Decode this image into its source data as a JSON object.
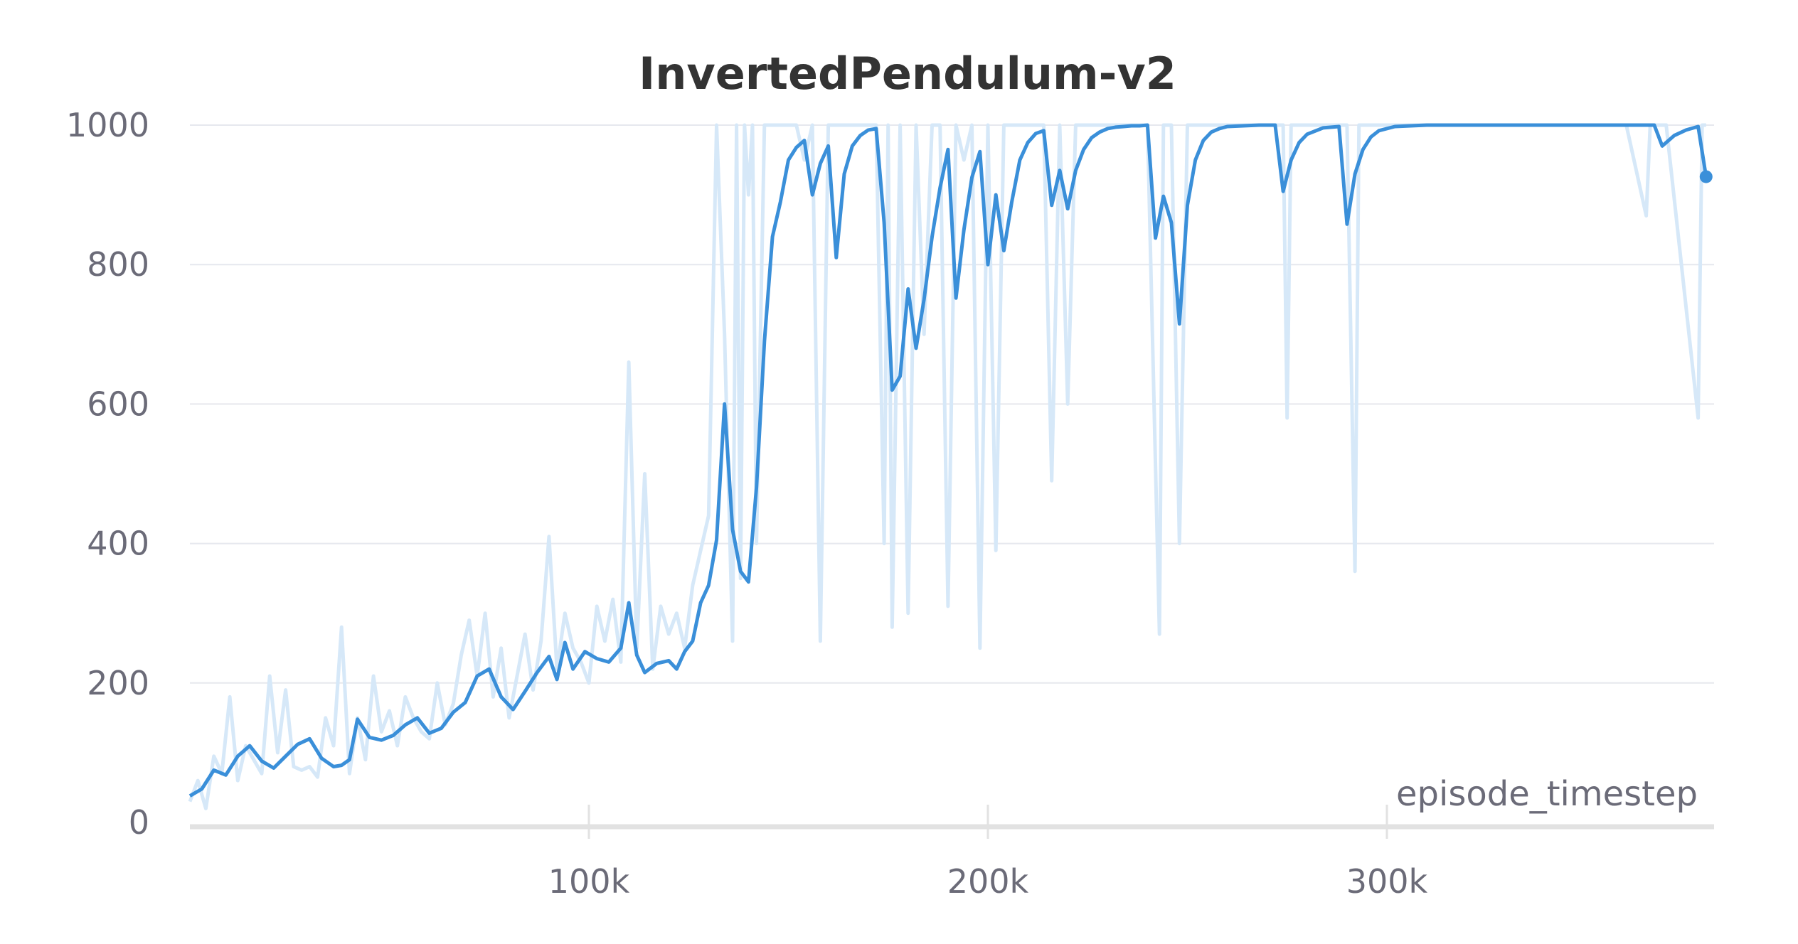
{
  "chart_data": {
    "type": "line",
    "title": "InvertedPendulum-v2",
    "xlabel": "episode_timestep",
    "ylabel": "",
    "xlim": [
      0,
      382000
    ],
    "ylim": [
      0,
      1000
    ],
    "x_ticks": [
      {
        "value": 100000,
        "label": "100k"
      },
      {
        "value": 200000,
        "label": "200k"
      },
      {
        "value": 300000,
        "label": "300k"
      }
    ],
    "y_ticks": [
      {
        "value": 0,
        "label": "0"
      },
      {
        "value": 200,
        "label": "200"
      },
      {
        "value": 400,
        "label": "400"
      },
      {
        "value": 600,
        "label": "600"
      },
      {
        "value": 800,
        "label": "800"
      },
      {
        "value": 1000,
        "label": "1000"
      }
    ],
    "grid": true,
    "legend": "none",
    "colors": {
      "line": "#3a8fd9",
      "raw": "#d6e8f8"
    },
    "series": [
      {
        "role": "smoothed",
        "x": [
          0,
          3000,
          6000,
          9000,
          12000,
          15000,
          18000,
          21000,
          24000,
          27000,
          30000,
          33000,
          36000,
          38000,
          40000,
          42000,
          45000,
          48000,
          51000,
          54000,
          57000,
          60000,
          63000,
          66000,
          69000,
          72000,
          75000,
          78000,
          81000,
          84000,
          87000,
          90000,
          92000,
          94000,
          96000,
          99000,
          102000,
          105000,
          108000,
          110000,
          112000,
          114000,
          117000,
          120000,
          122000,
          124000,
          126000,
          128000,
          130000,
          132000,
          134000,
          136000,
          138000,
          140000,
          142000,
          144000,
          146000,
          148000,
          150000,
          152000,
          154000,
          156000,
          158000,
          160000,
          162000,
          164000,
          166000,
          168000,
          170000,
          172000,
          174000,
          176000,
          178000,
          180000,
          182000,
          184000,
          186000,
          188000,
          190000,
          192000,
          194000,
          196000,
          198000,
          200000,
          202000,
          204000,
          206000,
          208000,
          210000,
          212000,
          214000,
          216000,
          218000,
          220000,
          222000,
          224000,
          226000,
          228000,
          230000,
          232000,
          234000,
          236000,
          238000,
          240000,
          242000,
          244000,
          246000,
          248000,
          250000,
          252000,
          254000,
          256000,
          258000,
          260000,
          264000,
          268000,
          272000,
          274000,
          276000,
          278000,
          280000,
          284000,
          288000,
          290000,
          292000,
          294000,
          296000,
          298000,
          302000,
          306000,
          310000,
          320000,
          330000,
          340000,
          350000,
          360000,
          365000,
          367000,
          369000,
          372000,
          375000,
          378000,
          380000
        ],
        "y": [
          38,
          48,
          75,
          68,
          95,
          110,
          88,
          78,
          95,
          112,
          120,
          92,
          80,
          82,
          90,
          148,
          122,
          118,
          125,
          140,
          150,
          128,
          135,
          158,
          172,
          210,
          220,
          180,
          162,
          188,
          215,
          238,
          205,
          258,
          220,
          245,
          235,
          230,
          250,
          315,
          240,
          215,
          228,
          232,
          220,
          245,
          260,
          315,
          340,
          405,
          600,
          420,
          360,
          345,
          480,
          690,
          840,
          890,
          950,
          968,
          978,
          900,
          945,
          970,
          810,
          930,
          970,
          985,
          993,
          995,
          860,
          620,
          640,
          765,
          680,
          750,
          840,
          910,
          965,
          752,
          850,
          925,
          962,
          800,
          900,
          820,
          890,
          950,
          975,
          988,
          992,
          885,
          935,
          880,
          935,
          965,
          982,
          990,
          995,
          997,
          998,
          999,
          999,
          1000,
          838,
          898,
          860,
          715,
          885,
          950,
          978,
          990,
          995,
          998,
          999,
          1000,
          1000,
          905,
          950,
          975,
          987,
          996,
          998,
          858,
          930,
          965,
          983,
          992,
          998,
          999,
          1000,
          1000,
          1000,
          1000,
          1000,
          1000,
          1000,
          1000,
          970,
          985,
          993,
          998,
          926
        ]
      },
      {
        "role": "raw",
        "x": [
          0,
          2000,
          4000,
          6000,
          8000,
          10000,
          12000,
          14000,
          16000,
          18000,
          20000,
          22000,
          24000,
          26000,
          28000,
          30000,
          32000,
          34000,
          36000,
          38000,
          40000,
          42000,
          44000,
          46000,
          48000,
          50000,
          52000,
          54000,
          56000,
          58000,
          60000,
          62000,
          64000,
          66000,
          68000,
          70000,
          72000,
          74000,
          76000,
          78000,
          80000,
          82000,
          84000,
          86000,
          88000,
          90000,
          92000,
          94000,
          96000,
          98000,
          100000,
          102000,
          104000,
          106000,
          108000,
          110000,
          112000,
          114000,
          116000,
          118000,
          120000,
          122000,
          124000,
          126000,
          128000,
          130000,
          132000,
          134000,
          136000,
          137000,
          138000,
          139000,
          140000,
          141000,
          142000,
          144000,
          146000,
          148000,
          150000,
          152000,
          154000,
          156000,
          158000,
          160000,
          162000,
          164000,
          166000,
          168000,
          170000,
          172000,
          174000,
          175000,
          176000,
          178000,
          180000,
          182000,
          184000,
          186000,
          188000,
          190000,
          192000,
          194000,
          196000,
          198000,
          200000,
          202000,
          204000,
          206000,
          208000,
          210000,
          212000,
          214000,
          216000,
          218000,
          220000,
          222000,
          224000,
          226000,
          228000,
          230000,
          240000,
          243000,
          244000,
          246000,
          248000,
          250000,
          252000,
          260000,
          270000,
          274000,
          275000,
          276000,
          280000,
          290000,
          292000,
          293000,
          294000,
          300000,
          310000,
          320000,
          340000,
          360000,
          365000,
          366000,
          367000,
          370000,
          378000,
          379000,
          380000
        ],
        "y": [
          30,
          60,
          20,
          95,
          70,
          180,
          60,
          110,
          90,
          70,
          210,
          100,
          190,
          80,
          75,
          80,
          65,
          150,
          110,
          280,
          70,
          150,
          90,
          210,
          130,
          160,
          110,
          180,
          150,
          130,
          120,
          200,
          140,
          170,
          240,
          290,
          210,
          300,
          180,
          250,
          150,
          210,
          270,
          190,
          260,
          410,
          220,
          300,
          250,
          230,
          200,
          310,
          260,
          320,
          230,
          660,
          250,
          500,
          220,
          310,
          270,
          300,
          250,
          340,
          390,
          440,
          1000,
          700,
          260,
          1000,
          350,
          1000,
          900,
          1000,
          400,
          1000,
          1000,
          1000,
          1000,
          1000,
          950,
          1000,
          260,
          1000,
          1000,
          1000,
          1000,
          1000,
          1000,
          1000,
          400,
          1000,
          280,
          1000,
          300,
          1000,
          700,
          1000,
          1000,
          310,
          1000,
          950,
          1000,
          250,
          1000,
          390,
          1000,
          1000,
          1000,
          1000,
          1000,
          1000,
          490,
          1000,
          600,
          1000,
          1000,
          1000,
          1000,
          1000,
          1000,
          270,
          1000,
          1000,
          400,
          1000,
          1000,
          1000,
          1000,
          1000,
          580,
          1000,
          1000,
          1000,
          360,
          1000,
          1000,
          1000,
          1000,
          1000,
          1000,
          1000,
          870,
          1000,
          1000,
          1000,
          580,
          1000,
          1000
        ]
      }
    ]
  }
}
